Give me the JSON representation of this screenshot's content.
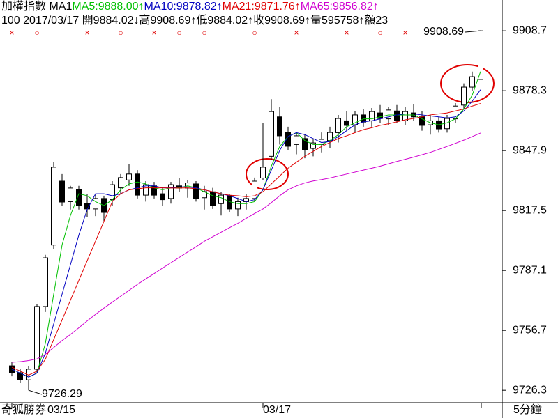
{
  "chart_data": {
    "type": "candlestick",
    "header": {
      "line1": [
        {
          "text": "加權指數 MA1",
          "color": "#000000"
        },
        {
          "text": "MA5:9888.00↑",
          "color": "#00c000"
        },
        {
          "text": "MA10:9878.82↑",
          "color": "#0000c0"
        },
        {
          "text": "MA21:9871.76↑",
          "color": "#e00000"
        },
        {
          "text": "MA65:9856.82↑",
          "color": "#d000d0"
        }
      ],
      "line2": "100 2017/03/17 開9884.02↓高9908.69↑低9884.02↑收9908.69↑量595758↑額23"
    },
    "candles": [
      [
        9738.7,
        9740.5,
        9733.4,
        9735.2
      ],
      [
        9735.2,
        9737.0,
        9729.9,
        9731.6
      ],
      [
        9731.6,
        9738.7,
        9726.29,
        9737.0
      ],
      [
        9737.0,
        9770.0,
        9735.2,
        9768.8
      ],
      [
        9768.8,
        9795.0,
        9766.0,
        9793.5
      ],
      [
        9800.0,
        9842.0,
        9798.0,
        9839.5
      ],
      [
        9832.4,
        9836.0,
        9820.0,
        9821.8
      ],
      [
        9822.0,
        9830.0,
        9818.0,
        9828.9
      ],
      [
        9828.0,
        9830.0,
        9818.0,
        9820.0
      ],
      [
        9821.0,
        9826.0,
        9814.0,
        9818.3
      ],
      [
        9818.3,
        9825.3,
        9814.7,
        9823.6
      ],
      [
        9823.6,
        9825.0,
        9812.0,
        9816.5
      ],
      [
        9823.0,
        9832.4,
        9820.0,
        9830.6
      ],
      [
        9829.0,
        9836.0,
        9826.0,
        9834.2
      ],
      [
        9833.0,
        9841.0,
        9830.0,
        9836.0
      ],
      [
        9836.0,
        9838.0,
        9823.6,
        9825.3
      ],
      [
        9825.3,
        9832.4,
        9822.0,
        9830.6
      ],
      [
        9830.0,
        9832.0,
        9823.6,
        9825.3
      ],
      [
        9826.0,
        9829.0,
        9820.0,
        9823.0
      ],
      [
        9823.6,
        9832.0,
        9821.0,
        9830.6
      ],
      [
        9830.0,
        9834.0,
        9827.0,
        9828.9
      ],
      [
        9828.9,
        9833.0,
        9824.0,
        9831.5
      ],
      [
        9831.0,
        9832.4,
        9822.0,
        9823.6
      ],
      [
        9824.0,
        9830.0,
        9818.0,
        9827.1
      ],
      [
        9827.0,
        9829.0,
        9818.3,
        9820.0
      ],
      [
        9821.0,
        9827.1,
        9815.0,
        9825.3
      ],
      [
        9825.0,
        9826.0,
        9816.5,
        9818.3
      ],
      [
        9818.3,
        9824.0,
        9814.7,
        9822.0
      ],
      [
        9822.0,
        9826.0,
        9818.0,
        9823.6
      ],
      [
        9823.6,
        9834.2,
        9822.0,
        9832.4
      ],
      [
        9834.0,
        9862.0,
        9833.0,
        9839.5
      ],
      [
        9845.0,
        9874.0,
        9843.0,
        9867.7
      ],
      [
        9865.0,
        9870.0,
        9851.0,
        9855.4
      ],
      [
        9857.0,
        9860.0,
        9848.0,
        9850.1
      ],
      [
        9851.0,
        9857.0,
        9846.0,
        9855.4
      ],
      [
        9854.0,
        9856.0,
        9844.0,
        9848.3
      ],
      [
        9849.0,
        9854.0,
        9845.0,
        9851.8
      ],
      [
        9851.0,
        9857.1,
        9847.0,
        9853.6
      ],
      [
        9853.0,
        9860.0,
        9849.0,
        9857.1
      ],
      [
        9857.0,
        9866.0,
        9852.0,
        9864.2
      ],
      [
        9863.0,
        9868.0,
        9858.0,
        9860.7
      ],
      [
        9861.0,
        9868.0,
        9857.0,
        9866.0
      ],
      [
        9866.0,
        9869.0,
        9860.0,
        9862.4
      ],
      [
        9863.0,
        9869.5,
        9860.0,
        9867.7
      ],
      [
        9867.0,
        9871.0,
        9862.0,
        9864.2
      ],
      [
        9864.0,
        9870.0,
        9861.0,
        9868.5
      ],
      [
        9868.0,
        9871.0,
        9862.0,
        9863.0
      ],
      [
        9863.0,
        9870.0,
        9861.0,
        9867.7
      ],
      [
        9867.0,
        9871.3,
        9863.0,
        9865.0
      ],
      [
        9865.0,
        9868.0,
        9858.0,
        9860.7
      ],
      [
        9861.0,
        9866.0,
        9856.0,
        9863.0
      ],
      [
        9863.0,
        9865.0,
        9857.0,
        9858.9
      ],
      [
        9859.0,
        9866.0,
        9857.0,
        9864.2
      ],
      [
        9864.0,
        9872.0,
        9862.0,
        9870.5
      ],
      [
        9871.0,
        9882.0,
        9869.0,
        9880.1
      ],
      [
        9880.1,
        9888.0,
        9878.0,
        9885.4
      ],
      [
        9884.02,
        9908.69,
        9884.02,
        9908.69
      ]
    ],
    "series": [
      {
        "name": "MA5",
        "color": "#00c000",
        "values": [
          9737,
          9735,
          9733,
          9735,
          9750,
          9775,
          9800,
          9815,
          9826,
          9825,
          9822,
          9820,
          9823,
          9828,
          9831,
          9832,
          9831,
          9829,
          9828,
          9829,
          9829,
          9830,
          9829,
          9827,
          9825,
          9824,
          9822,
          9821,
          9821,
          9822,
          9828,
          9840,
          9850,
          9855,
          9857,
          9853,
          9851,
          9851,
          9853,
          9856,
          9860,
          9862,
          9864,
          9864,
          9865,
          9866,
          9866,
          9866,
          9866,
          9864,
          9862,
          9861,
          9862,
          9864,
          9869,
          9876,
          9888
        ]
      },
      {
        "name": "MA10",
        "color": "#0000c0",
        "values": [
          9737,
          9735,
          9733,
          9735,
          9745,
          9760,
          9775,
          9790,
          9805,
          9818,
          9826,
          9826,
          9825,
          9826,
          9828,
          9829,
          9830,
          9830,
          9829,
          9829,
          9829.5,
          9829.5,
          9829,
          9828,
          9827,
          9826,
          9825,
          9823.6,
          9822,
          9823,
          9828,
          9838,
          9848,
          9855,
          9857,
          9856,
          9854,
          9852,
          9852.5,
          9855,
          9858,
          9861,
          9862.5,
          9863,
          9864,
          9865,
          9866,
          9866.5,
          9866.5,
          9866,
          9865.5,
          9865,
          9864.5,
          9865,
          9868,
          9873,
          9878.82
        ]
      },
      {
        "name": "MA21",
        "color": "#e00000",
        "values": [
          9738,
          9736,
          9734,
          9736,
          9742,
          9752,
          9762,
          9772,
          9782,
          9792,
          9802,
          9812,
          9822,
          9826,
          9828,
          9828.5,
          9829,
          9829,
          9829,
          9828.9,
          9828.9,
          9829,
          9828.5,
          9828,
          9827,
          9826,
          9825.3,
          9825,
          9824.5,
          9825,
          9827,
          9831,
          9835,
          9839,
          9842,
          9845,
          9847.5,
          9850,
          9852,
          9854,
          9855.4,
          9857,
          9858.5,
          9859.5,
          9860.7,
          9861.5,
          9862.5,
          9863.5,
          9864.2,
          9865,
          9866,
          9866.5,
          9867,
          9868,
          9869,
          9870.5,
          9871.76
        ]
      },
      {
        "name": "MA65",
        "color": "#d000d0",
        "values": [
          9740.5,
          9740.8,
          9741.4,
          9742.2,
          9744.5,
          9748,
          9751.5,
          9754.6,
          9758,
          9761.5,
          9764.8,
          9768,
          9771,
          9774,
          9777,
          9780,
          9782.8,
          9785.5,
          9788.3,
          9791,
          9793.7,
          9796.4,
          9799.1,
          9801.9,
          9804.2,
          9806.5,
          9808.8,
          9811,
          9813.5,
          9816,
          9818.3,
          9821.5,
          9825,
          9828,
          9830,
          9831.5,
          9832.5,
          9833.2,
          9834,
          9835,
          9836,
          9837,
          9838,
          9839,
          9840,
          9841.2,
          9842.4,
          9843.5,
          9844.6,
          9845.8,
          9847,
          9848.5,
          9850,
          9851.6,
          9853.2,
          9855,
          9856.82
        ]
      }
    ],
    "markers": [
      {
        "index": 0,
        "symbol": "×"
      },
      {
        "index": 3,
        "symbol": "○"
      },
      {
        "index": 9,
        "symbol": "×"
      },
      {
        "index": 13,
        "symbol": "○"
      },
      {
        "index": 17,
        "symbol": "×"
      },
      {
        "index": 20,
        "symbol": "○"
      },
      {
        "index": 23,
        "symbol": "○"
      },
      {
        "index": 29,
        "symbol": "○"
      },
      {
        "index": 34,
        "symbol": "×"
      },
      {
        "index": 40,
        "symbol": "×"
      },
      {
        "index": 44,
        "symbol": "○"
      },
      {
        "index": 47,
        "symbol": "×"
      }
    ],
    "high_label": "9908.69",
    "low_label": "9726.29",
    "x_labels": [
      {
        "index": 0,
        "label": "03/15"
      },
      {
        "index": 30,
        "label": "03/17"
      }
    ],
    "brand": "奇狐勝券",
    "period": "5分鐘",
    "ylim": [
      9720.0,
      9924.3
    ],
    "yticks": [
      9726.3,
      9756.7,
      9787.1,
      9817.5,
      9847.9,
      9878.3,
      9908.7
    ],
    "up_color": "#ffffff",
    "down_color": "#000000",
    "grid": false
  }
}
